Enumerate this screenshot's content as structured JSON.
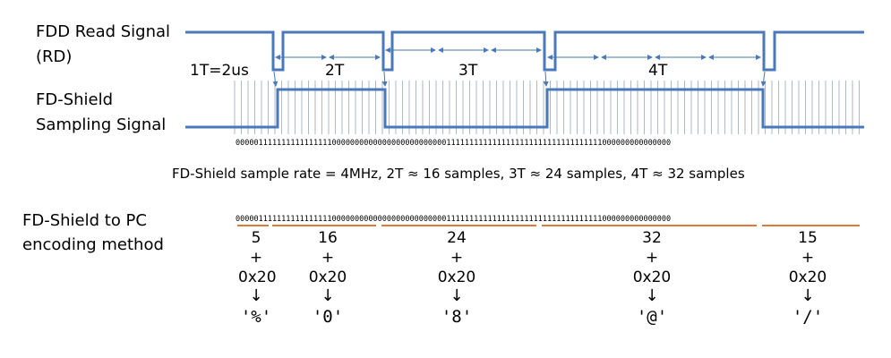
{
  "labels": {
    "rd_line1": "FDD Read Signal",
    "rd_line2": "(RD)",
    "fs_line1": "FD-Shield",
    "fs_line2": "Sampling Signal",
    "enc_line1": "FD-Shield to PC",
    "enc_line2": "encoding method"
  },
  "timing": {
    "period": "1T=2us",
    "t2": "2T",
    "t3": "3T",
    "t4": "4T"
  },
  "sample_bits": "00000111111111111111100000000000000000000000001111111111111111111111111111111111000000000000000",
  "sample_note": "FD-Shield sample rate = 4MHz, 2T ≈ 16 samples, 3T ≈ 24 samples, 4T ≈ 32 samples",
  "segments": [
    {
      "count": "5",
      "plus": "+",
      "offset": "0x20",
      "arrow": "↓",
      "char": "'%'"
    },
    {
      "count": "16",
      "plus": "+",
      "offset": "0x20",
      "arrow": "↓",
      "char": "'0'"
    },
    {
      "count": "24",
      "plus": "+",
      "offset": "0x20",
      "arrow": "↓",
      "char": "'8'"
    },
    {
      "count": "32",
      "plus": "+",
      "offset": "0x20",
      "arrow": "↓",
      "char": "'@'"
    },
    {
      "count": "15",
      "plus": "+",
      "offset": "0x20",
      "arrow": "↓",
      "char": "'/'"
    }
  ],
  "colors": {
    "signal": "#4a78b8",
    "underline": "#e07b39",
    "tick": "#9aa6b8"
  }
}
